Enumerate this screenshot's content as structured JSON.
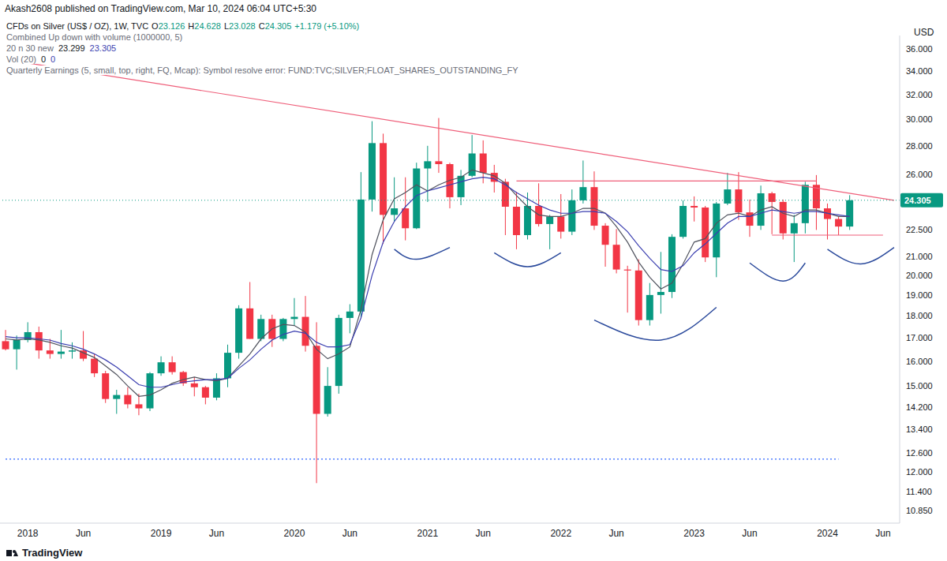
{
  "chart_data": {
    "type": "candlestick",
    "caption": "Akash2608 published on TradingView.com, Mar 10, 2024 06:04 UTC+5:30",
    "title": "CFDs on Silver (US$ / OZ), 1W, TVC",
    "quote": [
      {
        "label": "O",
        "value": 23.126
      },
      {
        "label": "H",
        "value": 24.628
      },
      {
        "label": "L",
        "value": 23.028
      },
      {
        "label": "C",
        "value": 24.305
      }
    ],
    "change": "+1.179 (+5.10%)",
    "indicators": [
      {
        "name": "Combined Up down with volume (1000000, 5)"
      },
      {
        "name": "20 n 30 new",
        "values": [
          23.299,
          23.305
        ]
      },
      {
        "name": "Vol (20)",
        "values": [
          0,
          0
        ]
      },
      {
        "name": "Quarterly Earnings (5, small, top, right, FQ, Mcap): Symbol resolve error: FUND:TVC;SILVER;FLOAT_SHARES_OUTSTANDING_FY"
      }
    ],
    "unit": "USD",
    "footer": "TradingView",
    "last_price": 24.305,
    "log": "y",
    "grid": false,
    "color": {
      "up": "#089981",
      "down": "#f23645"
    },
    "categories": [
      null,
      null,
      "2018",
      null,
      null,
      null,
      null,
      "Jun",
      null,
      null,
      null,
      null,
      null,
      null,
      "2019",
      null,
      null,
      null,
      null,
      "Jun",
      null,
      null,
      null,
      null,
      null,
      null,
      "2020",
      null,
      null,
      null,
      null,
      "Jun",
      null,
      null,
      null,
      null,
      null,
      null,
      "2021",
      null,
      null,
      null,
      null,
      "Jun",
      null,
      null,
      null,
      null,
      null,
      null,
      "2022",
      null,
      null,
      null,
      null,
      "Jun",
      null,
      null,
      null,
      null,
      null,
      null,
      "2023",
      null,
      null,
      null,
      null,
      "Jun",
      null,
      null,
      null,
      null,
      null,
      null,
      "2024",
      null,
      null,
      null,
      null,
      "Jun",
      null
    ],
    "open": [
      16.85,
      16.5,
      16.9,
      17.25,
      16.45,
      16.3,
      16.4,
      16.45,
      16.1,
      15.5,
      14.5,
      14.65,
      14.3,
      14.15,
      15.5,
      15.95,
      15.55,
      15.1,
      14.95,
      14.55,
      15.3,
      16.35,
      18.35,
      16.95,
      17.85,
      16.95,
      17.85,
      17.95,
      16.65,
      13.95,
      15.0,
      17.9,
      18.2,
      24.35,
      28.2,
      23.4,
      23.8,
      22.6,
      26.4,
      26.9,
      26.7,
      24.5,
      25.9,
      27.45,
      26.1,
      25.5,
      23.9,
      22.2,
      23.95,
      22.85,
      23.3,
      22.4,
      24.3,
      25.15,
      22.75,
      21.65,
      20.3,
      20.25,
      17.8,
      19.0,
      19.15,
      22.1,
      23.95,
      23.85,
      20.95,
      24.1,
      25.0,
      23.55,
      22.75,
      24.75,
      24.2,
      22.3,
      22.9,
      25.3,
      23.8,
      23.15,
      22.7,
      null,
      null,
      null,
      null
    ],
    "high": [
      17.35,
      17.1,
      17.7,
      17.5,
      16.95,
      17.35,
      16.8,
      17.3,
      16.3,
      15.6,
      14.85,
      14.95,
      14.7,
      15.55,
      16.2,
      16.2,
      15.6,
      15.35,
      15.0,
      15.5,
      16.7,
      18.5,
      19.65,
      18.05,
      18.05,
      17.9,
      18.85,
      18.95,
      17.7,
      15.75,
      18.05,
      18.55,
      26.15,
      29.85,
      28.9,
      25.8,
      25.8,
      26.8,
      28.0,
      30.1,
      26.8,
      26.3,
      28.8,
      28.4,
      26.65,
      25.7,
      24.85,
      24.8,
      25.4,
      23.4,
      24.7,
      25.0,
      26.95,
      26.2,
      22.9,
      22.55,
      20.5,
      20.85,
      19.6,
      21.25,
      22.25,
      24.3,
      24.55,
      23.95,
      24.2,
      26.1,
      26.15,
      24.35,
      25.25,
      24.85,
      24.35,
      23.4,
      25.5,
      25.95,
      24.1,
      23.3,
      24.628,
      null,
      null,
      null,
      null
    ],
    "low": [
      16.45,
      15.65,
      16.8,
      16.1,
      16.1,
      16.1,
      16.1,
      16.0,
      15.35,
      14.35,
      13.95,
      14.15,
      13.9,
      14.05,
      15.4,
      15.45,
      15.0,
      14.6,
      14.3,
      14.45,
      14.95,
      16.1,
      16.95,
      16.85,
      16.6,
      16.85,
      17.55,
      16.4,
      11.65,
      13.85,
      14.7,
      17.2,
      17.9,
      23.6,
      21.7,
      23.0,
      21.9,
      22.55,
      24.2,
      26.1,
      23.8,
      24.0,
      25.8,
      25.4,
      24.8,
      22.2,
      21.4,
      21.95,
      22.7,
      21.4,
      22.0,
      22.2,
      24.1,
      22.5,
      20.45,
      20.1,
      18.15,
      17.55,
      17.55,
      18.1,
      18.85,
      22.0,
      23.0,
      20.7,
      19.9,
      24.0,
      23.1,
      22.1,
      22.5,
      22.25,
      21.95,
      20.7,
      22.3,
      22.5,
      21.95,
      22.2,
      22.5,
      null,
      null,
      null,
      null
    ],
    "close": [
      16.5,
      16.9,
      17.25,
      16.45,
      16.3,
      16.4,
      16.45,
      16.1,
      15.5,
      14.5,
      14.65,
      14.3,
      14.15,
      15.5,
      15.95,
      15.55,
      15.1,
      14.95,
      14.55,
      15.3,
      16.35,
      18.35,
      16.95,
      17.85,
      16.95,
      17.85,
      17.95,
      16.65,
      13.95,
      15.0,
      17.9,
      18.2,
      24.35,
      28.2,
      23.4,
      23.8,
      22.6,
      26.4,
      26.9,
      26.7,
      24.5,
      25.9,
      27.45,
      26.1,
      25.5,
      23.9,
      22.2,
      23.95,
      22.85,
      23.3,
      22.4,
      24.3,
      25.15,
      22.75,
      21.65,
      20.3,
      20.25,
      17.8,
      19.0,
      19.15,
      22.1,
      23.95,
      23.85,
      20.95,
      24.1,
      25.0,
      23.55,
      22.75,
      24.75,
      24.2,
      22.3,
      22.9,
      25.3,
      23.8,
      23.15,
      22.7,
      24.305,
      null,
      null,
      null,
      null
    ],
    "series": [
      {
        "color": "#50535e",
        "values": [
          16.95,
          16.9,
          16.95,
          16.9,
          16.8,
          16.65,
          16.55,
          16.35,
          16.15,
          15.8,
          15.45,
          15.0,
          14.6,
          14.65,
          14.85,
          15.1,
          15.25,
          15.35,
          15.25,
          15.2,
          15.3,
          15.8,
          16.3,
          16.95,
          17.4,
          17.6,
          17.55,
          17.25,
          16.5,
          16.1,
          16.3,
          16.6,
          18.3,
          21.1,
          23.1,
          24.4,
          24.8,
          25.3,
          24.9,
          25.3,
          25.6,
          25.8,
          26.3,
          26.1,
          25.9,
          25.4,
          24.6,
          23.9,
          23.4,
          23.3,
          23.3,
          23.5,
          23.8,
          23.8,
          23.5,
          22.7,
          21.8,
          20.7,
          19.9,
          19.3,
          19.6,
          20.6,
          21.8,
          22.0,
          22.9,
          23.4,
          23.5,
          23.3,
          23.7,
          23.9,
          23.5,
          23.3,
          23.7,
          23.7,
          23.5,
          23.3,
          23.299,
          null,
          null,
          null,
          null
        ]
      },
      {
        "color": "#3b3fb0",
        "values": [
          17.05,
          17.0,
          17.0,
          16.95,
          16.9,
          16.75,
          16.65,
          16.5,
          16.3,
          16.05,
          15.75,
          15.4,
          15.05,
          14.95,
          14.95,
          15.05,
          15.15,
          15.2,
          15.25,
          15.25,
          15.3,
          15.7,
          16.05,
          16.5,
          16.9,
          17.15,
          17.3,
          17.2,
          16.8,
          16.6,
          16.6,
          16.7,
          17.9,
          20.0,
          21.8,
          23.0,
          23.9,
          24.6,
          24.9,
          25.1,
          25.3,
          25.5,
          25.7,
          25.8,
          25.7,
          25.3,
          24.8,
          24.4,
          24.0,
          23.7,
          23.5,
          23.5,
          23.6,
          23.6,
          23.5,
          23.0,
          22.4,
          21.6,
          20.9,
          20.3,
          20.2,
          20.5,
          21.2,
          21.7,
          22.3,
          22.9,
          23.3,
          23.3,
          23.5,
          23.7,
          23.6,
          23.5,
          23.6,
          23.6,
          23.5,
          23.4,
          23.305,
          null,
          null,
          null,
          null
        ]
      }
    ],
    "lines": [
      {
        "color": "#ef5f7a",
        "line_style": "solid",
        "points": [
          [
            0,
            35.05
          ],
          [
            80,
            24.3
          ]
        ]
      },
      {
        "color": "#ef5f7a",
        "line_style": "solid",
        "points": [
          [
            46,
            25.55
          ],
          [
            73,
            25.55
          ]
        ]
      },
      {
        "color": "#ef5f7a",
        "line_style": "solid",
        "points": [
          [
            69,
            22.2
          ],
          [
            79,
            22.2
          ]
        ]
      },
      {
        "color": "#2962ff",
        "line_style": "dotted",
        "points": [
          [
            0,
            12.4
          ],
          [
            75,
            12.4
          ]
        ]
      }
    ],
    "curves": [
      {
        "color": "#2b4a9c",
        "points": [
          [
            35,
            21.4
          ],
          [
            37,
            20.85
          ],
          [
            40,
            21.5
          ]
        ]
      },
      {
        "color": "#2b4a9c",
        "points": [
          [
            44,
            21.2
          ],
          [
            47,
            20.45
          ],
          [
            50,
            21.2
          ]
        ]
      },
      {
        "color": "#2b4a9c",
        "points": [
          [
            53,
            17.8
          ],
          [
            59,
            16.9
          ],
          [
            64,
            18.4
          ]
        ]
      },
      {
        "color": "#2b4a9c",
        "points": [
          [
            67,
            20.65
          ],
          [
            70,
            19.7
          ],
          [
            72,
            20.65
          ]
        ]
      },
      {
        "color": "#2b4a9c",
        "points": [
          [
            74,
            21.4
          ],
          [
            77,
            20.6
          ],
          [
            80,
            21.5
          ]
        ]
      }
    ],
    "ylim": [
      10.5,
      37.3
    ],
    "yticks": [
      {
        "value": 10.85,
        "label": "10.850"
      },
      {
        "value": 11.4,
        "label": "11.400"
      },
      {
        "value": 12,
        "label": "12.000"
      },
      {
        "value": 12.6,
        "label": "12.600"
      },
      {
        "value": 13.4,
        "label": "13.400"
      },
      {
        "value": 14.2,
        "label": "14.200"
      },
      {
        "value": 15,
        "label": "15.000"
      },
      {
        "value": 16,
        "label": "16.000"
      },
      {
        "value": 17,
        "label": "17.000"
      },
      {
        "value": 18,
        "label": "18.000"
      },
      {
        "value": 19,
        "label": "19.000"
      },
      {
        "value": 20,
        "label": "20.000"
      },
      {
        "value": 21,
        "label": "21.000"
      },
      {
        "value": 22.5,
        "label": "22.500"
      },
      {
        "value": 26,
        "label": "26.000"
      },
      {
        "value": 28,
        "label": "28.000"
      },
      {
        "value": 30,
        "label": "30.000"
      },
      {
        "value": 32,
        "label": "32.000"
      },
      {
        "value": 34,
        "label": "34.000"
      },
      {
        "value": 36,
        "label": "36.000"
      }
    ]
  }
}
